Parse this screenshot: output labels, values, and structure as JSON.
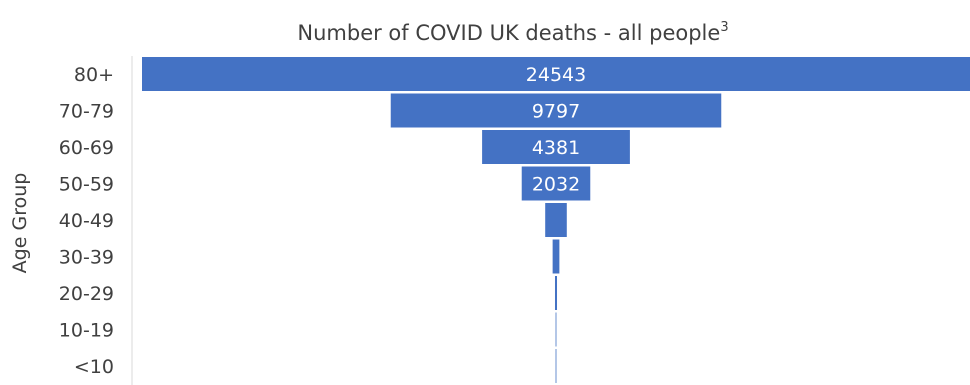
{
  "chart_data": {
    "type": "bar",
    "orientation": "horizontal-funnel",
    "title": "Number of COVID UK deaths - all people",
    "title_superscript": "3",
    "xlabel": "",
    "ylabel": "Age Group",
    "categories": [
      "80+",
      "70-79",
      "60-69",
      "50-59",
      "40-49",
      "30-39",
      "20-29",
      "10-19",
      "<10"
    ],
    "values": [
      24543,
      9797,
      4381,
      2032,
      640,
      200,
      60,
      10,
      5
    ],
    "data_labels": [
      "24543",
      "9797",
      "4381",
      "2032",
      "",
      "",
      "",
      "",
      ""
    ],
    "series": [
      {
        "values": [
          24543,
          9797,
          4381,
          2032,
          640,
          200,
          60,
          10,
          5
        ]
      }
    ],
    "colors": {
      "bar": "#4472C4",
      "bar_faint": "#B4C7E7",
      "axis": "#D9D9D9",
      "text": "#404040",
      "label": "#FFFFFF"
    },
    "grid": false,
    "legend": "none"
  }
}
